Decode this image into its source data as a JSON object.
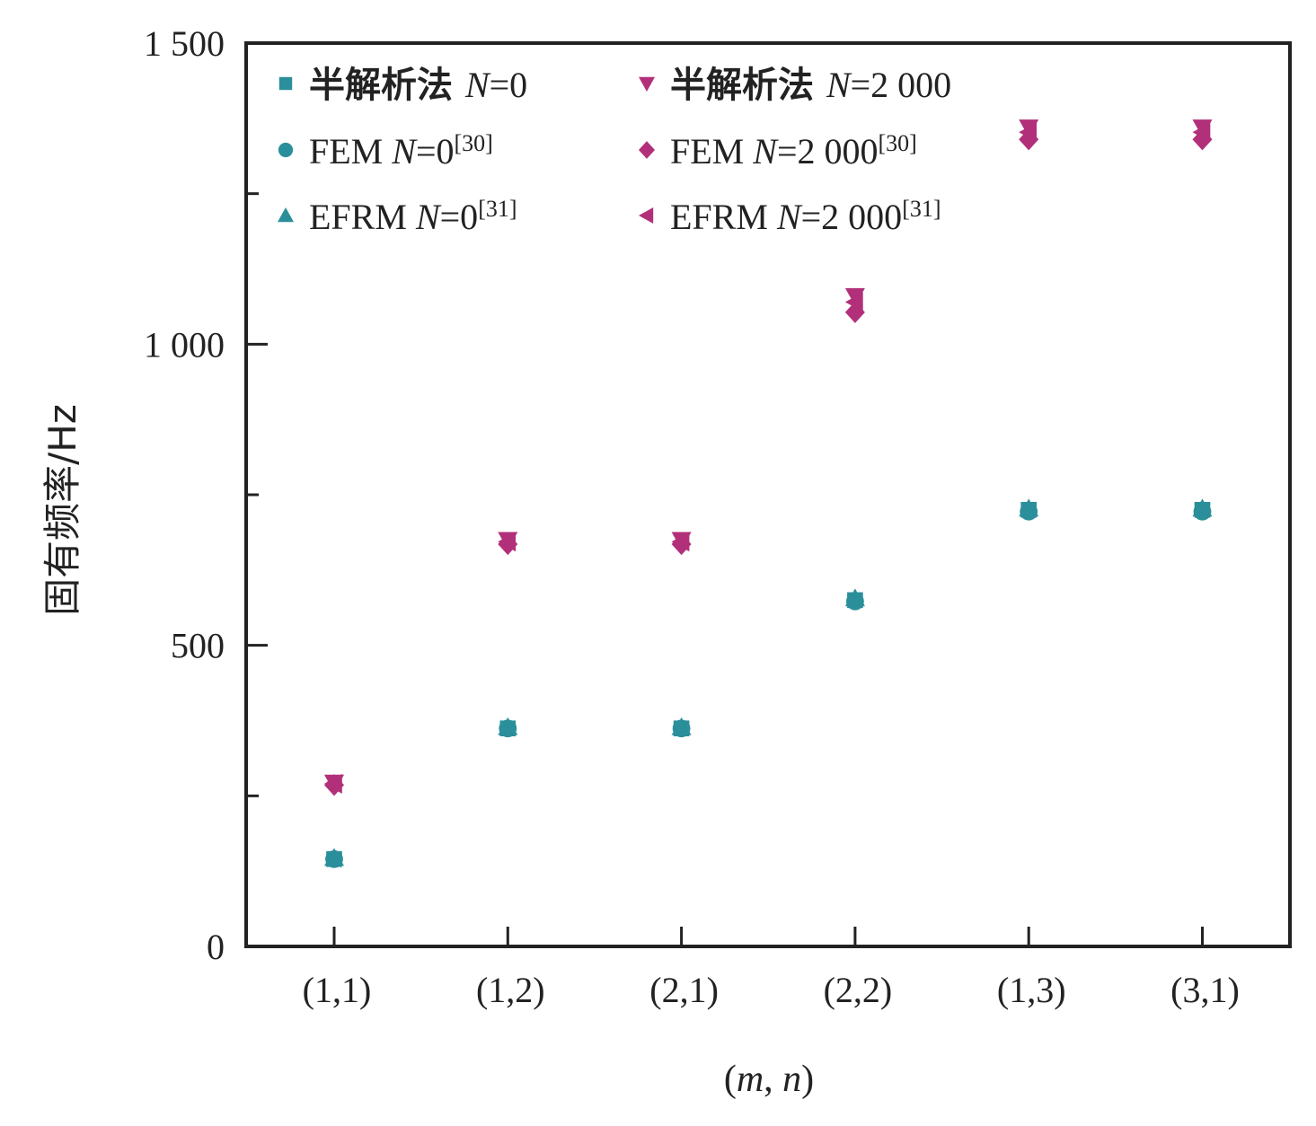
{
  "chart_data": {
    "type": "scatter",
    "xlabel_parts": [
      "(",
      "m",
      ", ",
      "n",
      ")"
    ],
    "ylabel": "固有频率/Hz",
    "categories": [
      "(1,1)",
      "(1,2)",
      "(2,1)",
      "(2,2)",
      "(1,3)",
      "(3,1)"
    ],
    "yticks": [
      0,
      500,
      1000,
      1500
    ],
    "ytick_labels": [
      "0",
      "500",
      "1 000",
      "1 500"
    ],
    "ylim": [
      0,
      1500
    ],
    "grid": false,
    "legend_position": "top-left",
    "colors": {
      "teal": "#2a8f9a",
      "magenta": "#b2307a"
    },
    "series": [
      {
        "marker": "square",
        "color": "#2a8f9a",
        "legend": {
          "prefix": "半解析法 ",
          "n_label": "N",
          "value": "=0",
          "ref": ""
        },
        "values": [
          145,
          362,
          362,
          575,
          725,
          725
        ]
      },
      {
        "marker": "circle",
        "color": "#2a8f9a",
        "legend": {
          "prefix": "FEM  ",
          "n_label": "N",
          "value": "=0",
          "ref": "[30]"
        },
        "values": [
          145,
          362,
          362,
          573,
          722,
          722
        ]
      },
      {
        "marker": "triangle-up",
        "color": "#2a8f9a",
        "legend": {
          "prefix": "EFRM  ",
          "n_label": "N",
          "value": "=0",
          "ref": "[31]"
        },
        "values": [
          147,
          364,
          364,
          578,
          727,
          727
        ]
      },
      {
        "marker": "triangle-down",
        "color": "#b2307a",
        "legend": {
          "prefix": "半解析法 ",
          "n_label": "N",
          "value": "=2 000",
          "ref": ""
        },
        "values": [
          272,
          675,
          675,
          1080,
          1360,
          1360
        ]
      },
      {
        "marker": "diamond",
        "color": "#b2307a",
        "legend": {
          "prefix": "FEM  ",
          "n_label": "N",
          "value": "=2 000",
          "ref": "[30]"
        },
        "values": [
          268,
          668,
          668,
          1053,
          1340,
          1340
        ]
      },
      {
        "marker": "triangle-left",
        "color": "#b2307a",
        "legend": {
          "prefix": "EFRM  ",
          "n_label": "N",
          "value": "=2 000",
          "ref": "[31]"
        },
        "values": [
          270,
          672,
          672,
          1070,
          1352,
          1352
        ]
      }
    ]
  }
}
